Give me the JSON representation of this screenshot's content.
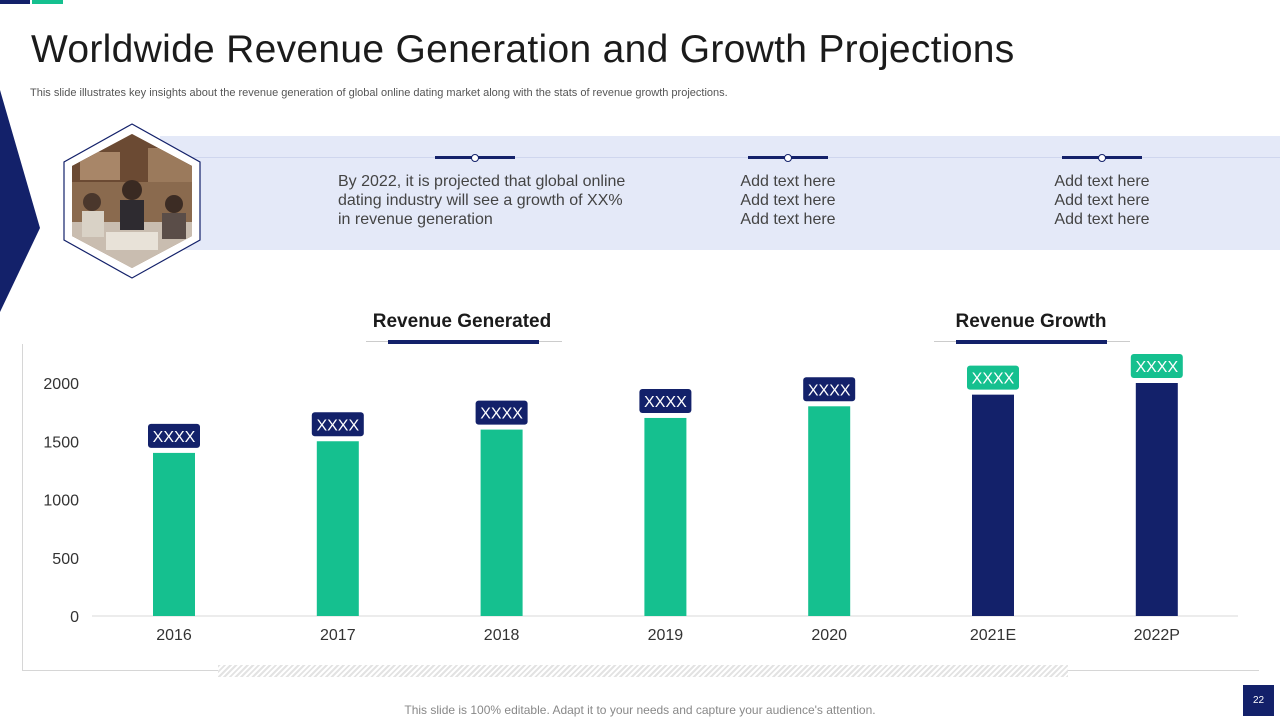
{
  "title": "Worldwide Revenue Generation and Growth Projections",
  "subtitle": "This slide illustrates key insights about the revenue generation of global online dating market along with the stats of revenue growth projections.",
  "insights": {
    "main": "By 2022, it is projected that global online dating industry will see a growth of XX% in revenue generation",
    "col2": [
      "Add text here",
      "Add text here",
      "Add text here"
    ],
    "col3": [
      "Add text here",
      "Add text here",
      "Add text here"
    ]
  },
  "section_labels": {
    "revenue_generated": "Revenue Generated",
    "revenue_growth": "Revenue Growth"
  },
  "footer": "This slide is 100% editable. Adapt it to your needs and capture your audience's attention.",
  "page_number": "22",
  "colors": {
    "navy": "#13216a",
    "green": "#15c08f",
    "band": "#e4e9f8"
  },
  "chart_data": {
    "type": "bar",
    "title": "",
    "xlabel": "",
    "ylabel": "",
    "categories": [
      "2016",
      "2017",
      "2018",
      "2019",
      "2020",
      "2021E",
      "2022P"
    ],
    "values": [
      1400,
      1500,
      1600,
      1700,
      1800,
      1900,
      2000
    ],
    "data_labels": [
      "XXXX",
      "XXXX",
      "XXXX",
      "XXXX",
      "XXXX",
      "XXXX",
      "XXXX"
    ],
    "bar_groups": [
      "actual",
      "actual",
      "actual",
      "actual",
      "actual",
      "projected",
      "projected"
    ],
    "ylim": [
      0,
      2000
    ],
    "yticks": [
      0,
      500,
      1000,
      1500,
      2000
    ],
    "grid": false
  }
}
